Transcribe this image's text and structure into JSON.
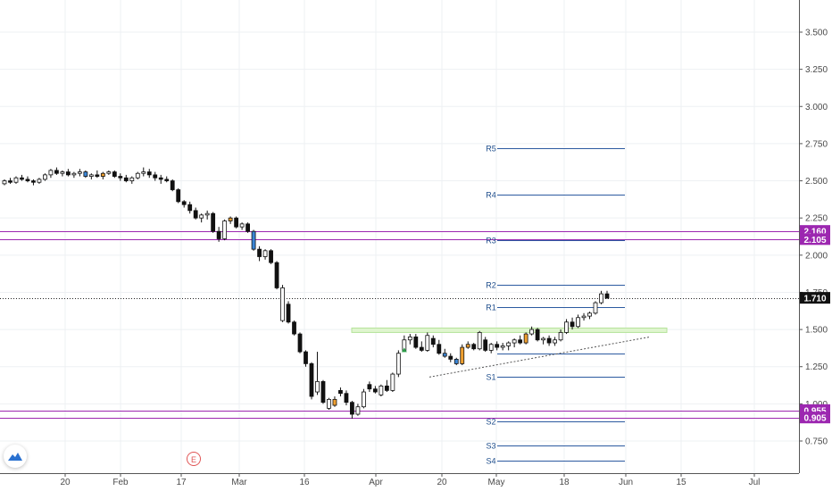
{
  "chart_data": {
    "type": "candlestick",
    "x_tick_labels": [
      "20",
      "Feb",
      "17",
      "Mar",
      "16",
      "Apr",
      "20",
      "May",
      "18",
      "Jun",
      "15",
      "Jul"
    ],
    "y_tick_labels": [
      "3.500",
      "3.250",
      "3.000",
      "2.750",
      "2.500",
      "2.250",
      "2.000",
      "1.750",
      "1.500",
      "1.250",
      "1.000",
      "0.750"
    ],
    "ylim": [
      0.6,
      3.6
    ],
    "current_price": "1.710",
    "horizontal_levels": [
      {
        "label": "2.160",
        "value": 2.16,
        "color": "#9c27b0"
      },
      {
        "label": "2.105",
        "value": 2.105,
        "color": "#9c27b0"
      },
      {
        "label": "0.955",
        "value": 0.955,
        "color": "#9c27b0"
      },
      {
        "label": "0.905",
        "value": 0.905,
        "color": "#9c27b0"
      }
    ],
    "pivot_levels": [
      {
        "label": "R5",
        "value": 2.72
      },
      {
        "label": "R4",
        "value": 2.41
      },
      {
        "label": "R3",
        "value": 2.1
      },
      {
        "label": "R2",
        "value": 1.8
      },
      {
        "label": "R1",
        "value": 1.65
      },
      {
        "label": "",
        "value": 1.34
      },
      {
        "label": "S1",
        "value": 1.18
      },
      {
        "label": "S2",
        "value": 0.88
      },
      {
        "label": "S3",
        "value": 0.72
      },
      {
        "label": "S4",
        "value": 0.62
      }
    ],
    "resistance_zone": [
      1.48,
      1.51
    ],
    "candles": [
      [
        2.48,
        2.51,
        2.47,
        2.5,
        "w"
      ],
      [
        2.5,
        2.52,
        2.48,
        2.49,
        "b"
      ],
      [
        2.49,
        2.53,
        2.48,
        2.52,
        "w"
      ],
      [
        2.52,
        2.54,
        2.5,
        2.51,
        "b"
      ],
      [
        2.51,
        2.53,
        2.49,
        2.5,
        "b"
      ],
      [
        2.5,
        2.51,
        2.47,
        2.49,
        "b"
      ],
      [
        2.49,
        2.52,
        2.48,
        2.51,
        "w"
      ],
      [
        2.51,
        2.55,
        2.5,
        2.54,
        "w"
      ],
      [
        2.54,
        2.58,
        2.52,
        2.57,
        "w"
      ],
      [
        2.57,
        2.59,
        2.54,
        2.55,
        "b"
      ],
      [
        2.55,
        2.57,
        2.53,
        2.56,
        "w"
      ],
      [
        2.56,
        2.58,
        2.53,
        2.54,
        "b"
      ],
      [
        2.54,
        2.56,
        2.52,
        2.55,
        "w"
      ],
      [
        2.55,
        2.58,
        2.53,
        2.56,
        "w"
      ],
      [
        2.56,
        2.57,
        2.52,
        2.53,
        "u"
      ],
      [
        2.53,
        2.55,
        2.51,
        2.54,
        "w"
      ],
      [
        2.54,
        2.57,
        2.52,
        2.53,
        "b"
      ],
      [
        2.53,
        2.56,
        2.51,
        2.55,
        "o"
      ],
      [
        2.55,
        2.57,
        2.54,
        2.56,
        "w"
      ],
      [
        2.56,
        2.57,
        2.52,
        2.53,
        "b"
      ],
      [
        2.53,
        2.55,
        2.5,
        2.52,
        "b"
      ],
      [
        2.52,
        2.54,
        2.49,
        2.5,
        "b"
      ],
      [
        2.5,
        2.53,
        2.48,
        2.52,
        "w"
      ],
      [
        2.52,
        2.56,
        2.51,
        2.55,
        "w"
      ],
      [
        2.55,
        2.59,
        2.53,
        2.56,
        "w"
      ],
      [
        2.56,
        2.58,
        2.52,
        2.54,
        "b"
      ],
      [
        2.54,
        2.56,
        2.5,
        2.52,
        "b"
      ],
      [
        2.52,
        2.54,
        2.48,
        2.51,
        "b"
      ],
      [
        2.51,
        2.53,
        2.49,
        2.5,
        "b"
      ],
      [
        2.5,
        2.51,
        2.43,
        2.44,
        "b"
      ],
      [
        2.44,
        2.45,
        2.35,
        2.36,
        "b"
      ],
      [
        2.36,
        2.37,
        2.32,
        2.34,
        "b"
      ],
      [
        2.34,
        2.36,
        2.28,
        2.3,
        "b"
      ],
      [
        2.3,
        2.32,
        2.24,
        2.25,
        "b"
      ],
      [
        2.25,
        2.28,
        2.22,
        2.27,
        "w"
      ],
      [
        2.27,
        2.3,
        2.24,
        2.28,
        "w"
      ],
      [
        2.28,
        2.29,
        2.15,
        2.16,
        "b"
      ],
      [
        2.16,
        2.19,
        2.09,
        2.11,
        "b"
      ],
      [
        2.11,
        2.24,
        2.1,
        2.23,
        "w"
      ],
      [
        2.23,
        2.26,
        2.21,
        2.25,
        "o"
      ],
      [
        2.25,
        2.26,
        2.18,
        2.19,
        "b"
      ],
      [
        2.19,
        2.22,
        2.17,
        2.21,
        "w"
      ],
      [
        2.21,
        2.22,
        2.15,
        2.16,
        "b"
      ],
      [
        2.16,
        2.17,
        2.03,
        2.04,
        "u"
      ],
      [
        2.04,
        2.06,
        1.96,
        1.99,
        "b"
      ],
      [
        1.99,
        2.04,
        1.97,
        2.03,
        "w"
      ],
      [
        2.03,
        2.04,
        1.94,
        1.95,
        "b"
      ],
      [
        1.95,
        1.96,
        1.77,
        1.78,
        "b"
      ],
      [
        1.56,
        1.8,
        1.55,
        1.78,
        "w"
      ],
      [
        1.67,
        1.69,
        1.54,
        1.55,
        "b"
      ],
      [
        1.55,
        1.56,
        1.46,
        1.47,
        "b"
      ],
      [
        1.47,
        1.48,
        1.34,
        1.35,
        "b"
      ],
      [
        1.35,
        1.36,
        1.25,
        1.27,
        "b"
      ],
      [
        1.27,
        1.28,
        1.03,
        1.05,
        "b"
      ],
      [
        1.08,
        1.35,
        1.06,
        1.15,
        "w"
      ],
      [
        1.15,
        1.16,
        1.0,
        1.01,
        "b"
      ],
      [
        0.97,
        1.04,
        0.96,
        1.03,
        "w"
      ],
      [
        1.03,
        1.05,
        0.98,
        0.99,
        "o"
      ],
      [
        1.09,
        1.11,
        1.05,
        1.07,
        "b"
      ],
      [
        1.07,
        1.09,
        0.99,
        1.01,
        "b"
      ],
      [
        1.01,
        1.02,
        0.9,
        0.93,
        "b"
      ],
      [
        0.93,
        1.0,
        0.92,
        0.98,
        "w"
      ],
      [
        0.98,
        1.1,
        0.97,
        1.08,
        "w"
      ],
      [
        1.13,
        1.15,
        1.08,
        1.1,
        "b"
      ],
      [
        1.1,
        1.12,
        1.07,
        1.08,
        "b"
      ],
      [
        1.06,
        1.13,
        1.05,
        1.12,
        "w"
      ],
      [
        1.12,
        1.16,
        1.08,
        1.09,
        "b"
      ],
      [
        1.09,
        1.21,
        1.08,
        1.2,
        "w"
      ],
      [
        1.2,
        1.36,
        1.18,
        1.34,
        "w"
      ],
      [
        1.36,
        1.46,
        1.35,
        1.43,
        "w"
      ],
      [
        1.43,
        1.47,
        1.4,
        1.45,
        "w"
      ],
      [
        1.45,
        1.47,
        1.37,
        1.38,
        "b"
      ],
      [
        1.38,
        1.42,
        1.35,
        1.36,
        "b"
      ],
      [
        1.36,
        1.48,
        1.35,
        1.46,
        "w"
      ],
      [
        1.44,
        1.46,
        1.38,
        1.4,
        "b"
      ],
      [
        1.4,
        1.43,
        1.33,
        1.34,
        "b"
      ],
      [
        1.34,
        1.37,
        1.31,
        1.32,
        "u"
      ],
      [
        1.32,
        1.34,
        1.28,
        1.3,
        "b"
      ],
      [
        1.3,
        1.31,
        1.26,
        1.27,
        "u"
      ],
      [
        1.27,
        1.4,
        1.26,
        1.38,
        "o"
      ],
      [
        1.38,
        1.42,
        1.37,
        1.4,
        "o"
      ],
      [
        1.4,
        1.41,
        1.36,
        1.37,
        "b"
      ],
      [
        1.37,
        1.49,
        1.36,
        1.48,
        "w"
      ],
      [
        1.43,
        1.45,
        1.35,
        1.36,
        "b"
      ],
      [
        1.36,
        1.41,
        1.34,
        1.4,
        "w"
      ],
      [
        1.4,
        1.42,
        1.36,
        1.38,
        "b"
      ],
      [
        1.38,
        1.41,
        1.36,
        1.39,
        "w"
      ],
      [
        1.39,
        1.42,
        1.36,
        1.41,
        "w"
      ],
      [
        1.41,
        1.44,
        1.38,
        1.43,
        "w"
      ],
      [
        1.43,
        1.46,
        1.4,
        1.41,
        "b"
      ],
      [
        1.41,
        1.48,
        1.4,
        1.47,
        "o"
      ],
      [
        1.47,
        1.52,
        1.46,
        1.5,
        "w"
      ],
      [
        1.5,
        1.51,
        1.42,
        1.43,
        "b"
      ],
      [
        1.43,
        1.45,
        1.4,
        1.44,
        "w"
      ],
      [
        1.44,
        1.46,
        1.39,
        1.41,
        "b"
      ],
      [
        1.41,
        1.45,
        1.39,
        1.43,
        "w"
      ],
      [
        1.43,
        1.5,
        1.42,
        1.48,
        "w"
      ],
      [
        1.48,
        1.57,
        1.47,
        1.55,
        "w"
      ],
      [
        1.55,
        1.58,
        1.5,
        1.52,
        "b"
      ],
      [
        1.52,
        1.6,
        1.51,
        1.58,
        "w"
      ],
      [
        1.58,
        1.61,
        1.56,
        1.59,
        "w"
      ],
      [
        1.59,
        1.62,
        1.57,
        1.61,
        "w"
      ],
      [
        1.61,
        1.69,
        1.6,
        1.68,
        "w"
      ],
      [
        1.68,
        1.76,
        1.67,
        1.74,
        "w"
      ],
      [
        1.74,
        1.76,
        1.71,
        1.71,
        "b"
      ]
    ]
  }
}
